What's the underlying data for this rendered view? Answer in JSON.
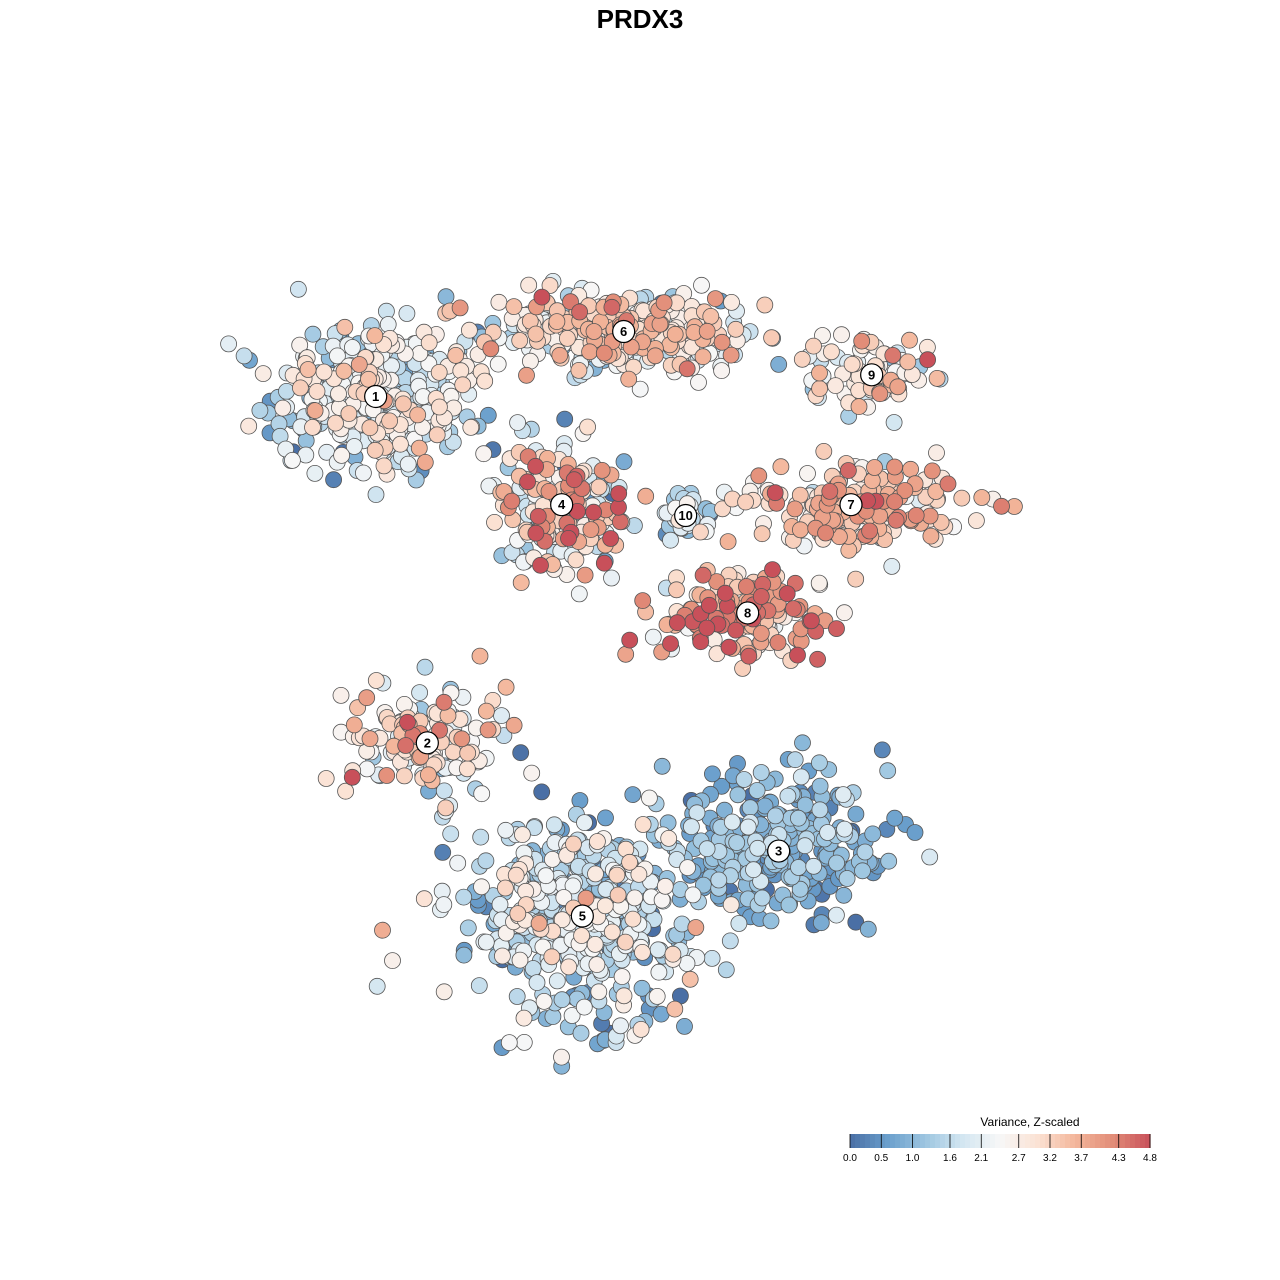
{
  "chart_data": {
    "type": "scatter",
    "title": "PRDX3",
    "xlabel": "",
    "ylabel": "",
    "grid": false,
    "legend_position": "bottom-right",
    "legend": {
      "title": "Variance, Z-scaled",
      "ticks": [
        "0.0",
        "0.5",
        "1.0",
        "1.6",
        "2.1",
        "2.7",
        "3.2",
        "3.7",
        "4.3",
        "4.8"
      ],
      "range": [
        0.0,
        4.8
      ],
      "colors": [
        "#4a6fa5",
        "#6a9fcc",
        "#9cc5e0",
        "#d3e6f1",
        "#f7f7f7",
        "#fbe2d4",
        "#f3b69b",
        "#e28d78",
        "#c8505a"
      ]
    },
    "clusters": [
      {
        "label": "1",
        "x": -28,
        "y": 30,
        "spread_x": 9,
        "spread_y": 6,
        "mean": 1.9,
        "sd": 0.8,
        "n": 420
      },
      {
        "label": "6",
        "x": -4,
        "y": 36,
        "spread_x": 12,
        "spread_y": 3.5,
        "mean": 2.6,
        "sd": 0.8,
        "n": 380
      },
      {
        "label": "9",
        "x": 20,
        "y": 32,
        "spread_x": 5,
        "spread_y": 3,
        "mean": 2.6,
        "sd": 0.7,
        "n": 110
      },
      {
        "label": "7",
        "x": 18,
        "y": 20,
        "spread_x": 10,
        "spread_y": 3.5,
        "mean": 3.3,
        "sd": 0.7,
        "n": 190
      },
      {
        "label": "4",
        "x": -10,
        "y": 20,
        "spread_x": 6,
        "spread_y": 5,
        "mean": 2.6,
        "sd": 1.3,
        "n": 200
      },
      {
        "label": "10",
        "x": 2,
        "y": 19,
        "spread_x": 2.2,
        "spread_y": 2.2,
        "mean": 1.5,
        "sd": 0.6,
        "n": 40
      },
      {
        "label": "8",
        "x": 8,
        "y": 10,
        "spread_x": 8,
        "spread_y": 4,
        "mean": 3.6,
        "sd": 0.9,
        "n": 160
      },
      {
        "label": "2",
        "x": -23,
        "y": -2,
        "spread_x": 7,
        "spread_y": 5,
        "mean": 2.6,
        "sd": 0.8,
        "n": 150
      },
      {
        "label": "3",
        "x": 11,
        "y": -12,
        "spread_x": 10,
        "spread_y": 6,
        "mean": 0.9,
        "sd": 0.5,
        "n": 320
      },
      {
        "label": "5",
        "x": -8,
        "y": -18,
        "spread_x": 10,
        "spread_y": 8,
        "mean": 1.6,
        "sd": 0.8,
        "n": 480
      }
    ],
    "xlim": [
      -45,
      45
    ],
    "ylim": [
      -35,
      50
    ]
  }
}
